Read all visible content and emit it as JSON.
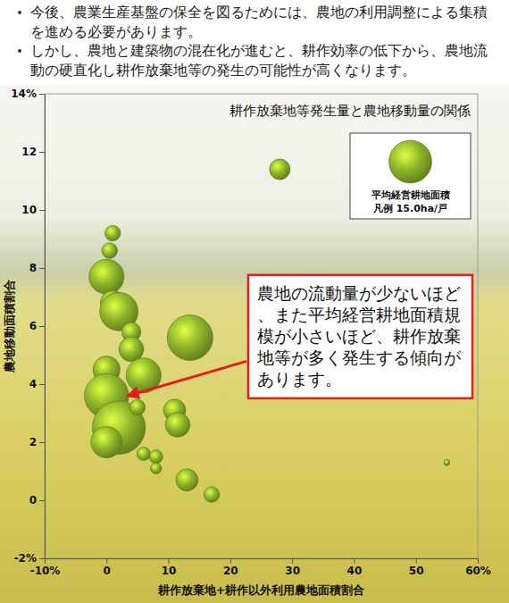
{
  "chart_data": {
    "type": "scatter",
    "notes": [
      "今後、農業生産基盤の保全を図るためには、農地の利用調整による集積を進める必要があります。",
      "しかし、農地と建築物の混在化が進むと、耕作効率の低下から、農地流動の硬直化し耕作放棄地等の発生の可能性が高くなります。"
    ],
    "title": "耕作放棄地等発生量と農地移動量の関係",
    "x_label": "耕作放棄地+耕作以外利用農地面積割合",
    "y_label": "農地移動面積割合",
    "x": [
      28,
      1,
      0.5,
      0,
      1,
      2,
      4,
      4,
      13.5,
      6,
      0,
      0,
      2,
      5,
      11,
      11.5,
      13,
      6,
      8,
      8,
      17,
      55,
      0
    ],
    "values": [
      11.4,
      9.2,
      8.6,
      7.7,
      6.8,
      6.5,
      5.8,
      5.2,
      5.6,
      4.3,
      4.5,
      3.6,
      2.5,
      3.2,
      3.1,
      2.6,
      0.7,
      1.6,
      1.5,
      1.1,
      0.2,
      1.3,
      2.0
    ],
    "sizes": [
      3.5,
      2,
      2,
      10,
      5,
      12,
      3,
      5,
      17,
      10,
      6,
      16,
      23,
      2,
      4,
      5,
      4,
      1.5,
      1.5,
      1,
      2,
      0.3,
      8
    ],
    "color": "#8db52a",
    "marker": "bubble",
    "xlim": [
      -10,
      60
    ],
    "ylim": [
      -2,
      14
    ],
    "xticks": [
      {
        "value": -10,
        "label": "-10%"
      },
      0,
      10,
      20,
      30,
      40,
      50,
      {
        "value": 60,
        "label": "60%"
      }
    ],
    "yticks": [
      {
        "value": -2,
        "label": "-2%"
      },
      0,
      2,
      4,
      6,
      8,
      10,
      12,
      {
        "value": 14,
        "label": "14%"
      }
    ],
    "grid": false,
    "legend": "top-right",
    "size_legend": {
      "title": "平均経営耕地面積",
      "text": "凡例 15.0ha/戸",
      "value": 15.0
    },
    "annotation": "農地の流動量が少ないほど、また平均経営耕地面積規模が小さいほど、耕作放棄地等が多く発生する傾向があります。"
  }
}
